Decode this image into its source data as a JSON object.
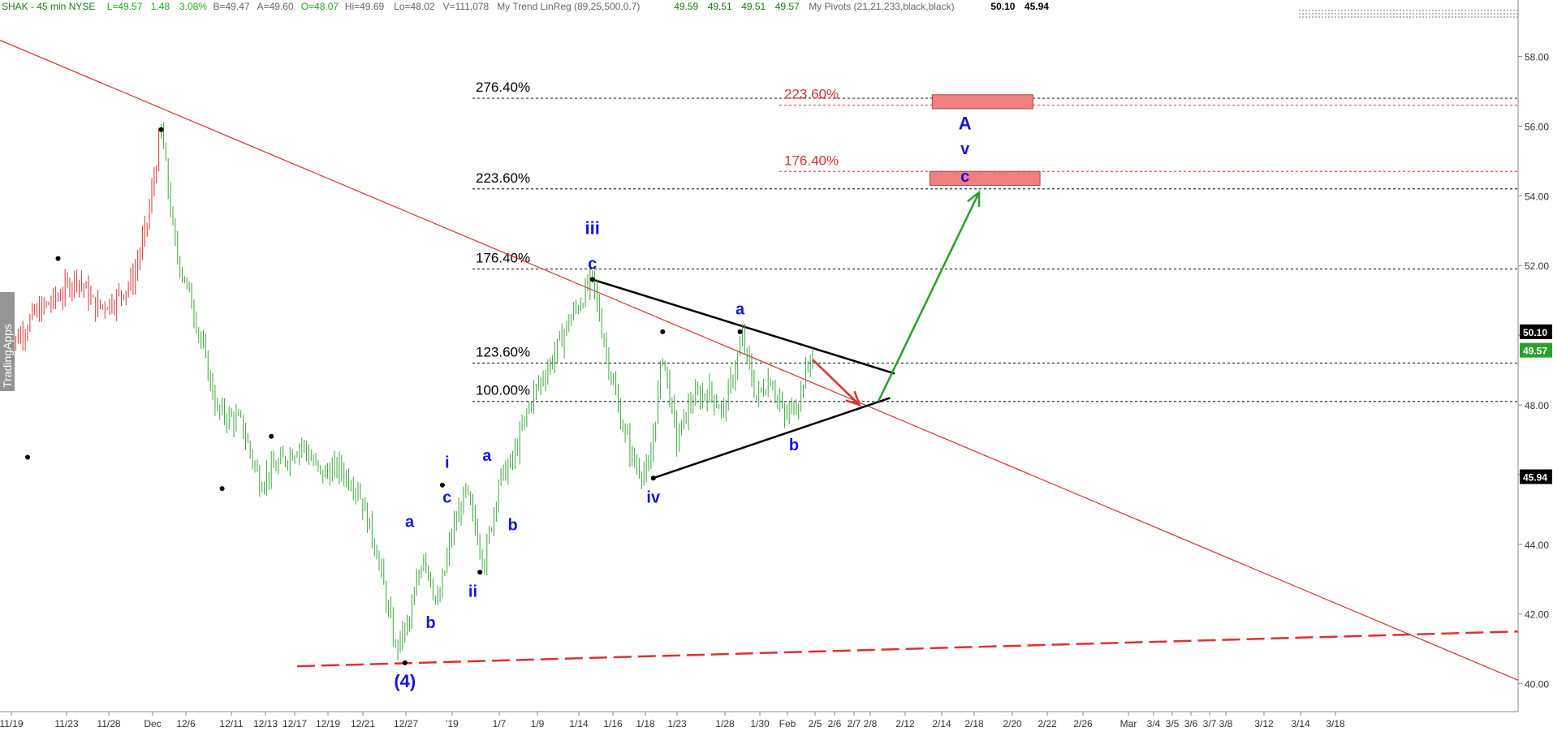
{
  "header": {
    "items": [
      {
        "text": "SHAK - 45 min  NYSE",
        "color": "#1a7a1a"
      },
      {
        "text": "L=49.57",
        "color": "#22aa22"
      },
      {
        "text": "1.48",
        "color": "#22aa22"
      },
      {
        "text": "3.08%",
        "color": "#22aa22"
      },
      {
        "text": "B=49.47",
        "color": "#666666"
      },
      {
        "text": "A=49.60",
        "color": "#666666"
      },
      {
        "text": "O=48.07",
        "color": "#22aa22"
      },
      {
        "text": "Hi=49.69",
        "color": "#666666"
      },
      {
        "text": "Lo=48.02",
        "color": "#666666"
      },
      {
        "text": "V=111,078",
        "color": "#666666"
      },
      {
        "text": "My  Trend  LinReg (89,25,500,0.7)",
        "color": "#666666"
      },
      {
        "text": "49.59",
        "color": "#1a7a1a"
      },
      {
        "text": "49.51",
        "color": "#1a7a1a"
      },
      {
        "text": "49.51",
        "color": "#1a7a1a"
      },
      {
        "text": "49.57",
        "color": "#1a7a1a"
      },
      {
        "text": "My  Pivots (21,21,233,black,black)",
        "color": "#666666"
      },
      {
        "text": "50.10",
        "color": "#000000"
      },
      {
        "text": "45.94",
        "color": "#000000"
      }
    ]
  },
  "watermark": "TradingApps",
  "chart_data": {
    "type": "candlestick",
    "symbol": "SHAK",
    "timeframe": "45 min",
    "ylim": [
      39.2,
      59.2
    ],
    "y_ticks": [
      "40.00",
      "42.00",
      "44.00",
      "46.00",
      "48.00",
      "50.00",
      "52.00",
      "54.00",
      "56.00",
      "58.00"
    ],
    "x_ticks": [
      "11/19",
      "11/23",
      "11/28",
      "Dec",
      "12/6",
      "12/11",
      "12/13",
      "12/17",
      "12/19",
      "12/21",
      "12/27",
      "'19",
      "1/7",
      "1/9",
      "1/14",
      "1/16",
      "1/18",
      "1/23",
      "1/28",
      "1/30",
      "Feb",
      "2/5",
      "2/6",
      "2/7",
      "2/8",
      "2/12",
      "2/14",
      "2/18",
      "2/20",
      "2/22",
      "2/26",
      "Mar",
      "3/4",
      "3/5",
      "3/6",
      "3/7",
      "3/8",
      "3/12",
      "3/14",
      "3/18"
    ],
    "price_path": [
      {
        "i": 0,
        "p": 49.5
      },
      {
        "i": 12,
        "p": 50.6
      },
      {
        "i": 22,
        "p": 51.1
      },
      {
        "i": 30,
        "p": 51.7
      },
      {
        "i": 38,
        "p": 50.8
      },
      {
        "i": 46,
        "p": 51.0
      },
      {
        "i": 54,
        "p": 51.6
      },
      {
        "i": 60,
        "p": 53.2
      },
      {
        "i": 66,
        "p": 55.9
      },
      {
        "i": 72,
        "p": 52.5
      },
      {
        "i": 80,
        "p": 50.7
      },
      {
        "i": 90,
        "p": 47.8
      },
      {
        "i": 100,
        "p": 47.5
      },
      {
        "i": 108,
        "p": 45.8
      },
      {
        "i": 118,
        "p": 46.4
      },
      {
        "i": 126,
        "p": 46.9
      },
      {
        "i": 134,
        "p": 46.0
      },
      {
        "i": 142,
        "p": 46.2
      },
      {
        "i": 150,
        "p": 45.6
      },
      {
        "i": 158,
        "p": 43.8
      },
      {
        "i": 166,
        "p": 41.0
      },
      {
        "i": 172,
        "p": 41.8
      },
      {
        "i": 178,
        "p": 43.8
      },
      {
        "i": 184,
        "p": 42.2
      },
      {
        "i": 190,
        "p": 44.3
      },
      {
        "i": 196,
        "p": 45.5
      },
      {
        "i": 204,
        "p": 43.5
      },
      {
        "i": 210,
        "p": 45.8
      },
      {
        "i": 216,
        "p": 46.4
      },
      {
        "i": 224,
        "p": 48.2
      },
      {
        "i": 232,
        "p": 49.2
      },
      {
        "i": 240,
        "p": 50.4
      },
      {
        "i": 250,
        "p": 51.6
      },
      {
        "i": 256,
        "p": 49.5
      },
      {
        "i": 262,
        "p": 47.6
      },
      {
        "i": 268,
        "p": 46.3
      },
      {
        "i": 274,
        "p": 46.0
      },
      {
        "i": 280,
        "p": 49.5
      },
      {
        "i": 286,
        "p": 47.0
      },
      {
        "i": 292,
        "p": 48.1
      },
      {
        "i": 300,
        "p": 48.4
      },
      {
        "i": 306,
        "p": 47.8
      },
      {
        "i": 314,
        "p": 49.9
      },
      {
        "i": 320,
        "p": 48.2
      },
      {
        "i": 326,
        "p": 48.8
      },
      {
        "i": 332,
        "p": 47.6
      },
      {
        "i": 338,
        "p": 48.2
      },
      {
        "i": 344,
        "p": 49.6
      }
    ],
    "up_color": "#3aa83a",
    "down_color": "#e03030",
    "red_until_index": 66,
    "dates_visible_bars": 345,
    "last_price": "49.57",
    "pivot_high": "50.10",
    "pivot_low": "45.94",
    "fib_levels": [
      {
        "label": "276.40%",
        "value": 56.8
      },
      {
        "label": "223.60%",
        "value": 54.2
      },
      {
        "label": "176.40%",
        "value": 51.9
      },
      {
        "label": "123.60%",
        "value": 49.2
      },
      {
        "label": "100.00%",
        "value": 48.1
      }
    ],
    "fib_levels_red": [
      {
        "label": "223.60%",
        "value": 56.6
      },
      {
        "label": "176.40%",
        "value": 54.7
      }
    ],
    "target_boxes": [
      {
        "from_index": 395,
        "to_index": 438,
        "y_low": 56.5,
        "y_high": 56.9
      },
      {
        "from_index": 394,
        "to_index": 441,
        "y_low": 54.3,
        "y_high": 54.7
      }
    ],
    "trendline_red": {
      "start": {
        "i": -4,
        "p": 58.5
      },
      "end": {
        "i": 645,
        "p": 40.1
      }
    },
    "trendline_red_dashed": {
      "start": {
        "i": 124,
        "p": 40.5
      },
      "end": {
        "i": 645,
        "p": 41.5
      }
    },
    "triangle_upper": {
      "start": {
        "i": 250,
        "p": 51.6
      },
      "end": {
        "i": 379,
        "p": 48.9
      }
    },
    "triangle_lower": {
      "start": {
        "i": 276,
        "p": 45.9
      },
      "end": {
        "i": 377,
        "p": 48.2
      }
    },
    "arrow_red": {
      "start": {
        "i": 344,
        "p": 49.3
      },
      "end": {
        "i": 364,
        "p": 48.0
      }
    },
    "arrow_green": {
      "start": {
        "i": 372,
        "p": 48.1
      },
      "end": {
        "i": 415,
        "p": 54.1
      }
    },
    "wave_labels": [
      {
        "text": "(4)",
        "i": 170,
        "p": 39.9,
        "size": 22
      },
      {
        "text": "a",
        "i": 172,
        "p": 44.5,
        "size": 20
      },
      {
        "text": "b",
        "i": 181,
        "p": 41.6,
        "size": 20
      },
      {
        "text": "i",
        "i": 188,
        "p": 46.2,
        "size": 20
      },
      {
        "text": "c",
        "i": 188,
        "p": 45.2,
        "size": 20
      },
      {
        "text": "ii",
        "i": 199,
        "p": 42.5,
        "size": 20
      },
      {
        "text": "a",
        "i": 205,
        "p": 46.4,
        "size": 20
      },
      {
        "text": "b",
        "i": 216,
        "p": 44.4,
        "size": 20
      },
      {
        "text": "iii",
        "i": 250,
        "p": 52.9,
        "size": 22
      },
      {
        "text": "c",
        "i": 250,
        "p": 51.9,
        "size": 20
      },
      {
        "text": "iv",
        "i": 276,
        "p": 45.2,
        "size": 20
      },
      {
        "text": "a",
        "i": 313,
        "p": 50.6,
        "size": 20
      },
      {
        "text": "b",
        "i": 336,
        "p": 46.7,
        "size": 20
      },
      {
        "text": "A",
        "i": 409,
        "p": 55.9,
        "size": 22
      },
      {
        "text": "v",
        "i": 409,
        "p": 55.2,
        "size": 20
      },
      {
        "text": "c",
        "i": 409,
        "p": 54.4,
        "size": 20
      }
    ]
  }
}
